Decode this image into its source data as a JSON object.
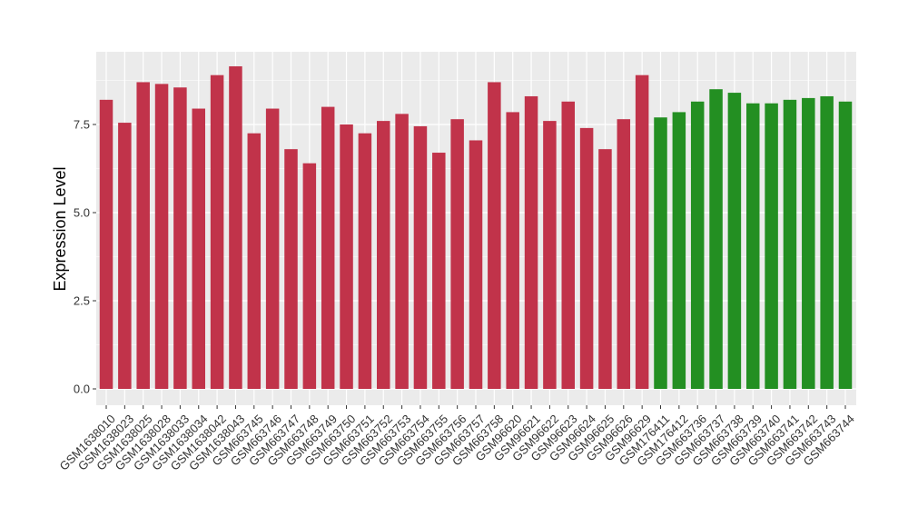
{
  "chart_data": {
    "type": "bar",
    "title": "",
    "xlabel": "",
    "ylabel": "Expression Level",
    "ylim": [
      0,
      9.5
    ],
    "yticks": [
      "0.0",
      "2.5",
      "5.0",
      "7.5"
    ],
    "ytick_values": [
      0,
      2.5,
      5.0,
      7.5
    ],
    "grid": true,
    "legend": "none",
    "colors": {
      "group1": "#C1334A",
      "group2": "#238F22",
      "panel": "#EBEBEB",
      "grid": "#FFFFFF"
    },
    "categories": [
      "GSM1638010",
      "GSM1638023",
      "GSM1638025",
      "GSM1638028",
      "GSM1638033",
      "GSM1638034",
      "GSM1638042",
      "GSM1638043",
      "GSM663745",
      "GSM663746",
      "GSM663747",
      "GSM663748",
      "GSM663749",
      "GSM663750",
      "GSM663751",
      "GSM663752",
      "GSM663753",
      "GSM663754",
      "GSM663755",
      "GSM663756",
      "GSM663757",
      "GSM663758",
      "GSM96620",
      "GSM96621",
      "GSM96622",
      "GSM96623",
      "GSM96624",
      "GSM96625",
      "GSM96626",
      "GSM96629",
      "GSM176411",
      "GSM176412",
      "GSM663736",
      "GSM663737",
      "GSM663738",
      "GSM663739",
      "GSM663740",
      "GSM663741",
      "GSM663742",
      "GSM663743",
      "GSM663744"
    ],
    "values": [
      8.2,
      7.55,
      8.7,
      8.65,
      8.55,
      7.95,
      8.9,
      9.15,
      7.25,
      7.95,
      6.8,
      6.4,
      8.0,
      7.5,
      7.25,
      7.6,
      7.8,
      7.45,
      6.7,
      7.65,
      7.05,
      8.7,
      7.85,
      8.3,
      7.6,
      8.15,
      7.4,
      6.8,
      7.65,
      8.9,
      7.7,
      7.85,
      8.15,
      8.5,
      8.4,
      8.1,
      8.1,
      8.2,
      8.25,
      8.3,
      8.15
    ],
    "groups": [
      1,
      1,
      1,
      1,
      1,
      1,
      1,
      1,
      1,
      1,
      1,
      1,
      1,
      1,
      1,
      1,
      1,
      1,
      1,
      1,
      1,
      1,
      1,
      1,
      1,
      1,
      1,
      1,
      1,
      1,
      2,
      2,
      2,
      2,
      2,
      2,
      2,
      2,
      2,
      2,
      2
    ]
  }
}
